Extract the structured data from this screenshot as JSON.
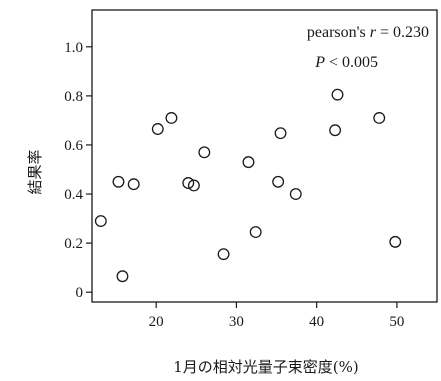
{
  "chart_data": {
    "type": "scatter",
    "title": "",
    "xlabel": "1月の相対光量子束密度(%)",
    "ylabel": "結果率",
    "xlim": [
      12,
      55
    ],
    "ylim": [
      -0.04,
      1.15
    ],
    "xticks": [
      20,
      30,
      40,
      50
    ],
    "yticks": [
      0,
      0.2,
      0.4,
      0.6,
      0.8,
      1.0
    ],
    "xtick_labels": [
      "20",
      "30",
      "40",
      "50"
    ],
    "ytick_labels": [
      "0",
      "0.2",
      "0.4",
      "0.6",
      "0.8",
      "1.0"
    ],
    "grid": false,
    "legend": "none",
    "marker": "open-circle",
    "colors": {
      "marker_stroke": "#1a1a1a",
      "axis": "#1a1a1a"
    },
    "annotation": {
      "stat_label": "pearson's ",
      "r_symbol": "r",
      "r_value": " = 0.230",
      "p_symbol": "P",
      "p_value": " < 0.005"
    },
    "points": [
      {
        "x": 13.1,
        "y": 0.29
      },
      {
        "x": 15.3,
        "y": 0.45
      },
      {
        "x": 15.8,
        "y": 0.065
      },
      {
        "x": 17.2,
        "y": 0.44
      },
      {
        "x": 20.2,
        "y": 0.665
      },
      {
        "x": 21.9,
        "y": 0.71
      },
      {
        "x": 24.0,
        "y": 0.445
      },
      {
        "x": 24.7,
        "y": 0.435
      },
      {
        "x": 26.0,
        "y": 0.57
      },
      {
        "x": 28.4,
        "y": 0.155
      },
      {
        "x": 31.5,
        "y": 0.53
      },
      {
        "x": 32.4,
        "y": 0.245
      },
      {
        "x": 35.2,
        "y": 0.45
      },
      {
        "x": 35.5,
        "y": 0.648
      },
      {
        "x": 37.4,
        "y": 0.4
      },
      {
        "x": 42.3,
        "y": 0.66
      },
      {
        "x": 42.6,
        "y": 0.805
      },
      {
        "x": 47.8,
        "y": 0.71
      },
      {
        "x": 49.8,
        "y": 0.205
      }
    ]
  }
}
